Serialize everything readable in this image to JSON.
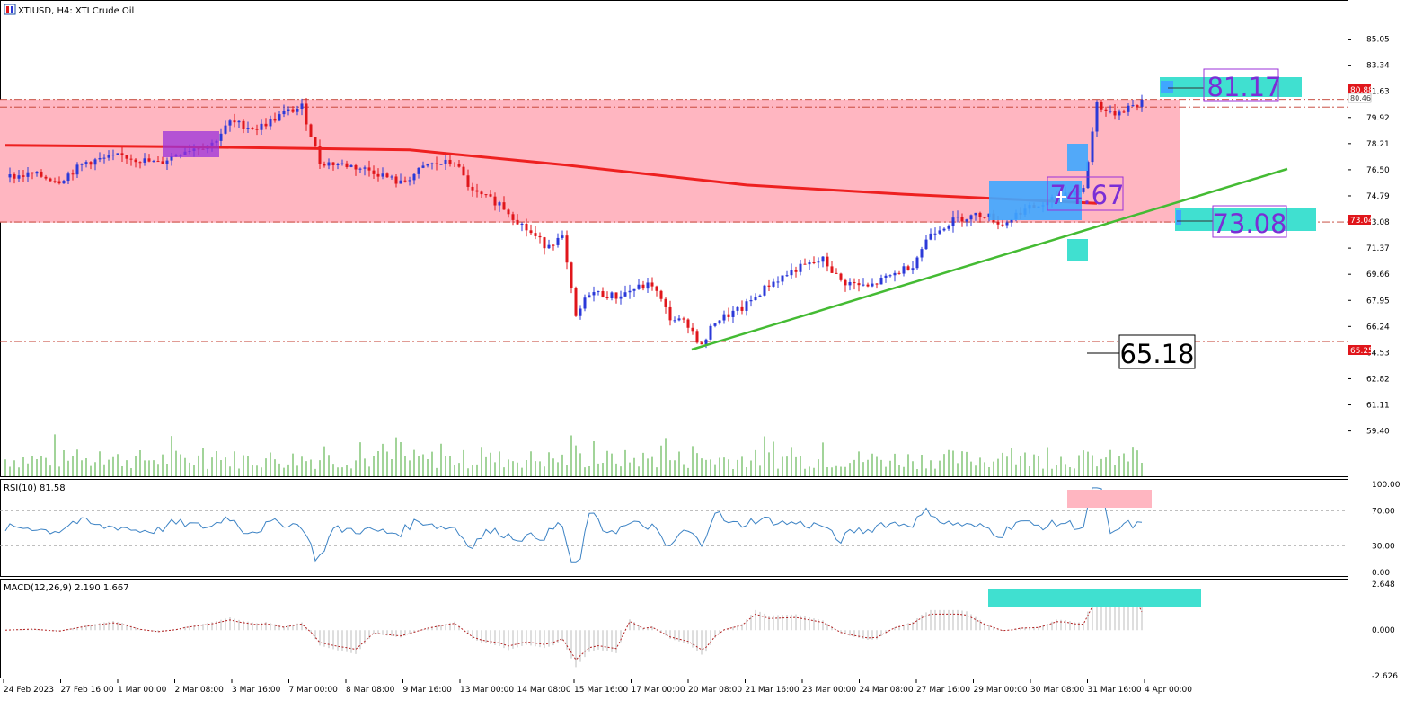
{
  "header": {
    "symbol_title": "XTIUSD, H4:  XTI Crude Oil"
  },
  "colors": {
    "bull": "#2b39d8",
    "bear": "#e0161b",
    "zone": "#ffb6c1",
    "ma": "#ee2020",
    "trend": "#44bb33",
    "volume": "#44aa33",
    "rsi": "#3b82c4",
    "macd_hist": "#bdbdbd",
    "macd_signal": "#b22222",
    "cyan": "#40e0d0",
    "blue_box": "#3fa7ff",
    "purple_box": "#9b30d9"
  },
  "price_axis": {
    "ticks": [
      "85.05",
      "83.34",
      "81.63",
      "79.92",
      "78.21",
      "76.50",
      "74.79",
      "73.08",
      "71.37",
      "69.66",
      "67.95",
      "66.24",
      "64.53",
      "62.82",
      "61.11",
      "59.40"
    ],
    "current_price": "80.88",
    "bid_label": "80.46",
    "level_73": "73.04",
    "level_65": "65.25"
  },
  "rsi": {
    "title": "RSI(10) 81.58",
    "ticks": [
      "100.00",
      "70.00",
      "30.00",
      "0.00"
    ]
  },
  "macd": {
    "title": "MACD(12,26,9) 2.190 1.667",
    "ticks": [
      "2.648",
      "0.000",
      "-2.626"
    ]
  },
  "time_axis": {
    "labels": [
      "24 Feb 2023",
      "27 Feb 16:00",
      "1 Mar 00:00",
      "2 Mar 08:00",
      "3 Mar 16:00",
      "7 Mar 00:00",
      "8 Mar 08:00",
      "9 Mar 16:00",
      "13 Mar 00:00",
      "14 Mar 08:00",
      "15 Mar 16:00",
      "17 Mar 00:00",
      "20 Mar 08:00",
      "21 Mar 16:00",
      "23 Mar 00:00",
      "24 Mar 08:00",
      "27 Mar 16:00",
      "29 Mar 00:00",
      "30 Mar 08:00",
      "31 Mar 16:00",
      "4 Apr 00:00"
    ]
  },
  "annotations": {
    "level_81": "81.17",
    "level_74": "74.67",
    "level_73": "73.08",
    "level_65": "65.18"
  },
  "chart_data": {
    "type": "candlestick",
    "symbol": "XTIUSD",
    "timeframe": "H4",
    "ylim": [
      58.2,
      86.2
    ],
    "anchors": [
      {
        "t": 0,
        "p": 76.0
      },
      {
        "t": 6,
        "p": 76.2
      },
      {
        "t": 12,
        "p": 75.8
      },
      {
        "t": 18,
        "p": 77.0
      },
      {
        "t": 26,
        "p": 77.4
      },
      {
        "t": 34,
        "p": 76.9
      },
      {
        "t": 40,
        "p": 77.8
      },
      {
        "t": 46,
        "p": 78.2
      },
      {
        "t": 50,
        "p": 79.6
      },
      {
        "t": 56,
        "p": 79.2
      },
      {
        "t": 62,
        "p": 80.2
      },
      {
        "t": 66,
        "p": 80.6
      },
      {
        "t": 70,
        "p": 77.0
      },
      {
        "t": 76,
        "p": 76.8
      },
      {
        "t": 82,
        "p": 76.4
      },
      {
        "t": 88,
        "p": 75.6
      },
      {
        "t": 94,
        "p": 76.8
      },
      {
        "t": 100,
        "p": 77.0
      },
      {
        "t": 104,
        "p": 75.0
      },
      {
        "t": 110,
        "p": 74.3
      },
      {
        "t": 116,
        "p": 72.6
      },
      {
        "t": 120,
        "p": 71.6
      },
      {
        "t": 124,
        "p": 72.0
      },
      {
        "t": 127,
        "p": 66.8
      },
      {
        "t": 130,
        "p": 68.5
      },
      {
        "t": 136,
        "p": 68.2
      },
      {
        "t": 140,
        "p": 68.7
      },
      {
        "t": 144,
        "p": 69.0
      },
      {
        "t": 148,
        "p": 66.8
      },
      {
        "t": 152,
        "p": 66.4
      },
      {
        "t": 155,
        "p": 64.9
      },
      {
        "t": 158,
        "p": 66.6
      },
      {
        "t": 164,
        "p": 67.4
      },
      {
        "t": 170,
        "p": 69.0
      },
      {
        "t": 176,
        "p": 70.0
      },
      {
        "t": 182,
        "p": 70.6
      },
      {
        "t": 186,
        "p": 69.2
      },
      {
        "t": 192,
        "p": 68.8
      },
      {
        "t": 196,
        "p": 69.4
      },
      {
        "t": 202,
        "p": 70.3
      },
      {
        "t": 206,
        "p": 72.4
      },
      {
        "t": 212,
        "p": 73.3
      },
      {
        "t": 218,
        "p": 73.6
      },
      {
        "t": 222,
        "p": 72.9
      },
      {
        "t": 226,
        "p": 73.8
      },
      {
        "t": 232,
        "p": 74.3
      },
      {
        "t": 236,
        "p": 75.0
      },
      {
        "t": 240,
        "p": 75.2
      },
      {
        "t": 243,
        "p": 80.9
      },
      {
        "t": 246,
        "p": 80.1
      },
      {
        "t": 250,
        "p": 80.6
      },
      {
        "t": 253,
        "p": 80.88
      }
    ],
    "moving_average": [
      {
        "t": 0,
        "p": 78.1
      },
      {
        "t": 40,
        "p": 78.0
      },
      {
        "t": 90,
        "p": 77.8
      },
      {
        "t": 125,
        "p": 76.8
      },
      {
        "t": 165,
        "p": 75.5
      },
      {
        "t": 200,
        "p": 74.9
      },
      {
        "t": 236,
        "p": 74.4
      },
      {
        "t": 243,
        "p": 74.3
      }
    ],
    "resistance_zone": [
      73.04,
      81.1
    ],
    "levels": [
      81.17,
      74.67,
      73.08,
      65.18
    ],
    "rsi_ylim": [
      0,
      100
    ],
    "rsi_levels": [
      70,
      30
    ],
    "macd_ylim": [
      -2.626,
      2.648
    ]
  }
}
